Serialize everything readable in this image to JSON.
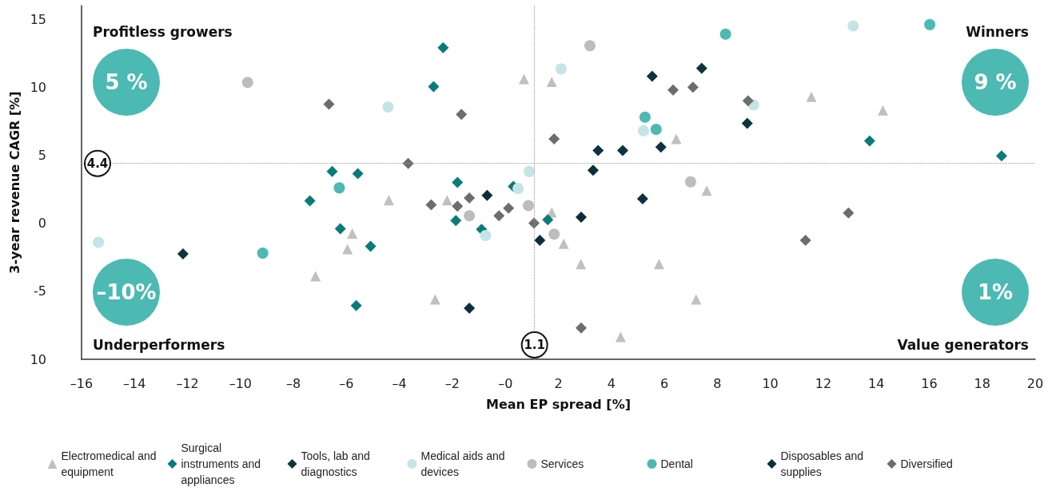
{
  "chart_data": {
    "type": "scatter",
    "xlabel": "Mean EP spread [%]",
    "ylabel": "3-year revenue CAGR [%]",
    "xlim": [
      -16,
      20
    ],
    "ylim": [
      -10,
      16
    ],
    "xticks": [
      {
        "value": -16,
        "label": "–16"
      },
      {
        "value": -14,
        "label": "–14"
      },
      {
        "value": -12,
        "label": "–12"
      },
      {
        "value": -10,
        "label": "–10"
      },
      {
        "value": -8,
        "label": "–8"
      },
      {
        "value": -6,
        "label": "–6"
      },
      {
        "value": -4,
        "label": "–4"
      },
      {
        "value": -2,
        "label": "–2"
      },
      {
        "value": 0,
        "label": "–0"
      },
      2,
      4,
      6,
      8,
      10,
      12,
      14,
      16,
      18,
      20
    ],
    "yticks": [
      {
        "value": -10,
        "label": "10"
      },
      -5,
      0,
      5,
      10,
      15
    ],
    "grid": false,
    "legend": "bottom",
    "ref_lines": [
      {
        "axis": "y",
        "value": 4.4,
        "label": "4.4",
        "color": "#999999",
        "line_style": "dotted"
      },
      {
        "axis": "x",
        "value": 1.1,
        "label": "1.1",
        "color": "#999999",
        "line_style": "dotted"
      }
    ],
    "annotations": [
      "Profitless growers",
      "5 %",
      "Winners",
      "9 %",
      "Underperformers",
      "–10%",
      "Value generators",
      "1%"
    ],
    "series": [
      {
        "name": "Electromedical and equipment",
        "color": "#c0c0c0",
        "marker": "triangle",
        "x": [
          -7.17,
          -5.96,
          -5.78,
          -4.4,
          -2.2,
          -2.65,
          0.7,
          1.75,
          1.75,
          2.2,
          2.85,
          5.8,
          4.35,
          6.45,
          7.6,
          7.2,
          11.55,
          14.25
        ],
        "values": [
          -3.9,
          -1.9,
          -0.75,
          1.7,
          1.7,
          -5.6,
          10.6,
          10.4,
          0.8,
          -1.5,
          -3.0,
          -3.0,
          -8.35,
          6.2,
          2.4,
          -5.6,
          9.3,
          8.3
        ]
      },
      {
        "name": "Surgical instruments and appliances",
        "color": "#0a7b7b",
        "marker": "diamond",
        "x": [
          -7.38,
          -6.54,
          -5.57,
          -6.23,
          -5.09,
          -5.63,
          -2.35,
          -2.71,
          -1.81,
          -1.87,
          -0.9,
          0.3,
          1.6,
          13.75,
          18.73
        ],
        "values": [
          1.65,
          3.8,
          3.65,
          -0.4,
          -1.7,
          -6.05,
          12.9,
          10.05,
          3.0,
          0.2,
          -0.45,
          2.7,
          0.25,
          6.05,
          4.95
        ]
      },
      {
        "name": "Tools, lab and diagnostics",
        "color": "#0d3340",
        "marker": "diamond",
        "x": [
          -12.17,
          3.5,
          4.43,
          5.54,
          5.87,
          5.18,
          7.41,
          9.13
        ],
        "values": [
          -2.25,
          5.35,
          5.35,
          10.8,
          5.6,
          1.8,
          11.4,
          7.35
        ]
      },
      {
        "name": "Medical aids and devices",
        "color": "#c4e4e6",
        "marker": "circle",
        "x": [
          -15.36,
          -4.43,
          2.1,
          5.21,
          0.9,
          0.48,
          -0.75,
          9.37,
          13.13
        ],
        "values": [
          -1.4,
          8.55,
          11.35,
          6.8,
          3.8,
          2.55,
          -0.9,
          8.7,
          14.5
        ]
      },
      {
        "name": "Services",
        "color": "#bdbdbd",
        "marker": "circle",
        "x": [
          -9.73,
          3.19,
          -1.36,
          0.87,
          1.84,
          6.99
        ],
        "values": [
          10.35,
          13.05,
          0.55,
          1.3,
          -0.8,
          3.05
        ]
      },
      {
        "name": "Dental",
        "color": "#4cb9b3",
        "marker": "circle",
        "x": [
          -9.16,
          -6.27,
          5.27,
          5.69,
          8.31,
          16.02
        ],
        "values": [
          -2.2,
          2.6,
          7.8,
          6.9,
          13.9,
          14.6
        ]
      },
      {
        "name": "Disposables and supplies",
        "color": "#0d2d3a",
        "marker": "diamond",
        "x": [
          -0.69,
          -1.36,
          3.31,
          2.86,
          1.3
        ],
        "values": [
          2.05,
          -6.25,
          3.9,
          0.45,
          -1.25
        ]
      },
      {
        "name": "Diversified",
        "color": "#6d6d6d",
        "marker": "diamond",
        "x": [
          -6.66,
          -1.66,
          -3.67,
          -2.8,
          -1.81,
          -1.36,
          -0.24,
          0.12,
          1.08,
          1.84,
          6.33,
          2.86,
          7.08,
          9.16,
          12.95,
          11.33
        ],
        "values": [
          8.75,
          8.0,
          4.4,
          1.35,
          1.25,
          1.85,
          0.55,
          1.1,
          0.0,
          6.2,
          9.8,
          -7.7,
          10.0,
          9.0,
          0.75,
          -1.25
        ]
      }
    ]
  }
}
